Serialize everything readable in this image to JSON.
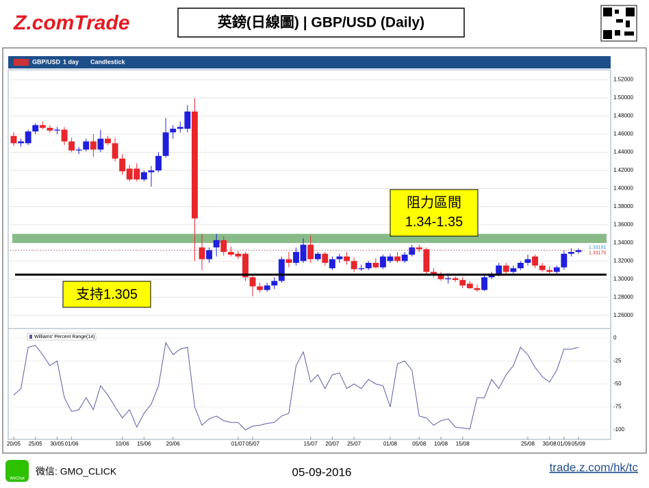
{
  "header": {
    "logo": "Z.comTrade",
    "title": "英鎊(日線圖) | GBP/USD (Daily)"
  },
  "toolbar": [
    "GBP/USD",
    "1 day",
    "Candlestick"
  ],
  "footer": {
    "wechat_icon": "WeChat",
    "wechat": "微信: GMO_CLICK",
    "date": "05-09-2016",
    "url": "trade.z.com/hk/tc"
  },
  "chart_data": [
    {
      "type": "candlestick",
      "categories": [
        "20/05",
        null,
        null,
        "25/05",
        null,
        null,
        "30/05",
        null,
        "01/06",
        null,
        null,
        null,
        null,
        null,
        null,
        "10/06",
        null,
        null,
        "15/06",
        null,
        null,
        null,
        "20/06",
        null,
        null,
        null,
        null,
        null,
        null,
        null,
        null,
        "01/07",
        null,
        "05/07",
        null,
        null,
        null,
        null,
        null,
        null,
        null,
        "15/07",
        null,
        null,
        "20/07",
        null,
        null,
        "25/07",
        null,
        null,
        null,
        null,
        "01/08",
        null,
        null,
        null,
        "05/08",
        null,
        null,
        "10/08",
        null,
        null,
        "15/08",
        null,
        null,
        null,
        null,
        null,
        null,
        null,
        null,
        "25/08",
        null,
        null,
        "30/08",
        null,
        "01/09",
        null,
        "05/09"
      ],
      "ohlc": [
        [
          1.458,
          1.462,
          1.447,
          1.45
        ],
        [
          1.45,
          1.455,
          1.446,
          1.452
        ],
        [
          1.45,
          1.465,
          1.448,
          1.463
        ],
        [
          1.463,
          1.472,
          1.46,
          1.47
        ],
        [
          1.47,
          1.474,
          1.465,
          1.467
        ],
        [
          1.467,
          1.47,
          1.462,
          1.464
        ],
        [
          1.464,
          1.468,
          1.46,
          1.465
        ],
        [
          1.465,
          1.468,
          1.448,
          1.452
        ],
        [
          1.452,
          1.456,
          1.44,
          1.442
        ],
        [
          1.442,
          1.446,
          1.438,
          1.443
        ],
        [
          1.443,
          1.455,
          1.441,
          1.452
        ],
        [
          1.452,
          1.46,
          1.435,
          1.443
        ],
        [
          1.443,
          1.465,
          1.44,
          1.455
        ],
        [
          1.455,
          1.458,
          1.448,
          1.45
        ],
        [
          1.45,
          1.456,
          1.43,
          1.433
        ],
        [
          1.433,
          1.438,
          1.415,
          1.419
        ],
        [
          1.422,
          1.426,
          1.408,
          1.41
        ],
        [
          1.422,
          1.428,
          1.408,
          1.41
        ],
        [
          1.41,
          1.42,
          1.408,
          1.418
        ],
        [
          1.418,
          1.425,
          1.402,
          1.42
        ],
        [
          1.42,
          1.44,
          1.418,
          1.436
        ],
        [
          1.436,
          1.478,
          1.434,
          1.462
        ],
        [
          1.462,
          1.47,
          1.455,
          1.466
        ],
        [
          1.466,
          1.474,
          1.462,
          1.468
        ],
        [
          1.466,
          1.492,
          1.462,
          1.485
        ],
        [
          1.485,
          1.5,
          1.32,
          1.367
        ],
        [
          1.335,
          1.35,
          1.31,
          1.322
        ],
        [
          1.322,
          1.335,
          1.318,
          1.332
        ],
        [
          1.335,
          1.35,
          1.325,
          1.343
        ],
        [
          1.343,
          1.347,
          1.326,
          1.33
        ],
        [
          1.33,
          1.336,
          1.325,
          1.327
        ],
        [
          1.328,
          1.331,
          1.322,
          1.325
        ],
        [
          1.328,
          1.33,
          1.298,
          1.302
        ],
        [
          1.302,
          1.305,
          1.281,
          1.292
        ],
        [
          1.292,
          1.296,
          1.285,
          1.288
        ],
        [
          1.288,
          1.296,
          1.286,
          1.293
        ],
        [
          1.293,
          1.302,
          1.289,
          1.298
        ],
        [
          1.298,
          1.325,
          1.296,
          1.322
        ],
        [
          1.322,
          1.33,
          1.313,
          1.318
        ],
        [
          1.318,
          1.335,
          1.315,
          1.33
        ],
        [
          1.32,
          1.345,
          1.318,
          1.338
        ],
        [
          1.338,
          1.348,
          1.318,
          1.322
        ],
        [
          1.322,
          1.33,
          1.32,
          1.328
        ],
        [
          1.328,
          1.33,
          1.315,
          1.318
        ],
        [
          1.312,
          1.325,
          1.31,
          1.322
        ],
        [
          1.322,
          1.328,
          1.318,
          1.325
        ],
        [
          1.325,
          1.33,
          1.316,
          1.32
        ],
        [
          1.32,
          1.324,
          1.308,
          1.311
        ],
        [
          1.311,
          1.316,
          1.309,
          1.312
        ],
        [
          1.312,
          1.32,
          1.31,
          1.318
        ],
        [
          1.318,
          1.323,
          1.312,
          1.313
        ],
        [
          1.313,
          1.327,
          1.311,
          1.325
        ],
        [
          1.32,
          1.328,
          1.318,
          1.325
        ],
        [
          1.325,
          1.33,
          1.318,
          1.32
        ],
        [
          1.32,
          1.33,
          1.318,
          1.327
        ],
        [
          1.327,
          1.338,
          1.325,
          1.335
        ],
        [
          1.335,
          1.338,
          1.33,
          1.333
        ],
        [
          1.333,
          1.335,
          1.305,
          1.308
        ],
        [
          1.308,
          1.312,
          1.302,
          1.305
        ],
        [
          1.305,
          1.308,
          1.298,
          1.3
        ],
        [
          1.3,
          1.304,
          1.295,
          1.301
        ],
        [
          1.301,
          1.303,
          1.297,
          1.299
        ],
        [
          1.299,
          1.302,
          1.29,
          1.293
        ],
        [
          1.295,
          1.298,
          1.289,
          1.29
        ],
        [
          1.29,
          1.294,
          1.286,
          1.288
        ],
        [
          1.288,
          1.305,
          1.287,
          1.302
        ],
        [
          1.302,
          1.308,
          1.3,
          1.305
        ],
        [
          1.305,
          1.318,
          1.303,
          1.315
        ],
        [
          1.315,
          1.318,
          1.305,
          1.308
        ],
        [
          1.308,
          1.315,
          1.306,
          1.312
        ],
        [
          1.312,
          1.32,
          1.31,
          1.318
        ],
        [
          1.318,
          1.327,
          1.315,
          1.322
        ],
        [
          1.325,
          1.327,
          1.312,
          1.315
        ],
        [
          1.315,
          1.318,
          1.308,
          1.31
        ],
        [
          1.31,
          1.314,
          1.306,
          1.308
        ],
        [
          1.308,
          1.315,
          1.305,
          1.313
        ],
        [
          1.313,
          1.332,
          1.31,
          1.328
        ],
        [
          1.328,
          1.334,
          1.325,
          1.33
        ],
        [
          1.33,
          1.334,
          1.328,
          1.332
        ]
      ],
      "up_color": "#1f1fdd",
      "down_color": "#e8262b",
      "ylim": [
        1.25,
        1.525
      ],
      "yticks": [
        {
          "value": 1.52,
          "label": "1.52000"
        },
        {
          "value": 1.5,
          "label": "1.50000"
        },
        {
          "value": 1.48,
          "label": "1.48000"
        },
        {
          "value": 1.46,
          "label": "1.46000"
        },
        {
          "value": 1.44,
          "label": "1.44000"
        },
        {
          "value": 1.42,
          "label": "1.42000"
        },
        {
          "value": 1.4,
          "label": "1.40000"
        },
        {
          "value": 1.38,
          "label": "1.38000"
        },
        {
          "value": 1.36,
          "label": "1.36000"
        },
        {
          "value": 1.34,
          "label": "1.34000"
        },
        {
          "value": 1.32,
          "label": "1.32000"
        },
        {
          "value": 1.3,
          "label": "1.30000"
        },
        {
          "value": 1.28,
          "label": "1.28000"
        },
        {
          "value": 1.26,
          "label": "1.26000"
        }
      ],
      "grid": true,
      "resistance_band": [
        1.34,
        1.35
      ],
      "resistance_color": "#6aaa6a",
      "resistance_label": [
        "阻力區間",
        "1.34-1.35"
      ],
      "support_level": 1.305,
      "support_label": "支持1.305",
      "last_tags": [
        {
          "value": 1.33191,
          "color": "#2a8ad4"
        },
        {
          "value": 1.33175,
          "color": "#d42a2a"
        }
      ]
    },
    {
      "type": "line",
      "legend": "Williams' Percent Range(14)",
      "color": "#5a5aa8",
      "values": [
        -62,
        -55,
        -10,
        -8,
        -18,
        -30,
        -25,
        -65,
        -80,
        -78,
        -65,
        -78,
        -52,
        -62,
        -75,
        -87,
        -78,
        -97,
        -82,
        -72,
        -52,
        -5,
        -18,
        -12,
        -10,
        -75,
        -95,
        -88,
        -85,
        -90,
        -92,
        -92,
        -100,
        -96,
        -95,
        -93,
        -92,
        -85,
        -82,
        -30,
        -15,
        -48,
        -40,
        -55,
        -40,
        -38,
        -55,
        -50,
        -55,
        -45,
        -50,
        -52,
        -75,
        -28,
        -25,
        -35,
        -85,
        -87,
        -95,
        -90,
        -88,
        -97,
        -98,
        -99,
        -65,
        -65,
        -45,
        -55,
        -40,
        -30,
        -10,
        -18,
        -32,
        -42,
        -48,
        -35,
        -12,
        -12,
        -10
      ],
      "ylim": [
        -100,
        0
      ],
      "yticks": [
        0,
        -25,
        -50,
        -75,
        -100
      ],
      "grid": true
    }
  ]
}
